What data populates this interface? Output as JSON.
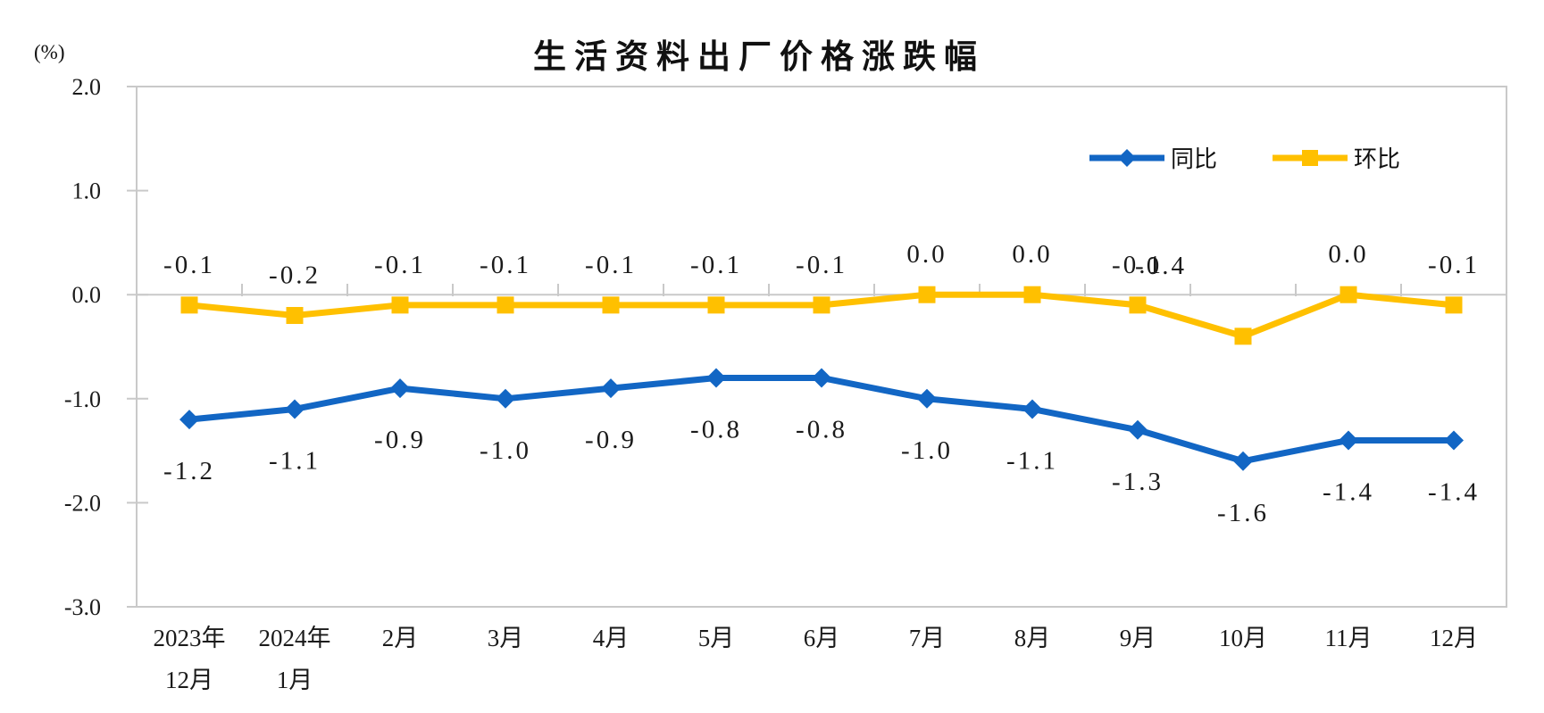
{
  "chart_data": {
    "type": "line",
    "title": "生活资料出厂价格涨跌幅",
    "unit": "(%)",
    "x_labels": [
      [
        "2023年",
        "12月"
      ],
      [
        "2024年",
        "1月"
      ],
      [
        "2月"
      ],
      [
        "3月"
      ],
      [
        "4月"
      ],
      [
        "5月"
      ],
      [
        "6月"
      ],
      [
        "7月"
      ],
      [
        "8月"
      ],
      [
        "9月"
      ],
      [
        "10月"
      ],
      [
        "11月"
      ],
      [
        "12月"
      ]
    ],
    "y_tick_labels": [
      "2.0",
      "1.0",
      "0.0",
      "-1.0",
      "-2.0",
      "-3.0"
    ],
    "y_tick_values": [
      2.0,
      1.0,
      0.0,
      -1.0,
      -2.0,
      -3.0
    ],
    "ylim": [
      -3.0,
      2.0
    ],
    "grid": "zero-line-only",
    "legend_position": "top-right-inside",
    "axis_color": "#C9C9C9",
    "label_color": "#1a1a1a",
    "series": [
      {
        "name": "同比",
        "marker": "diamond",
        "color": "#1266C4",
        "values": [
          -1.2,
          -1.1,
          -0.9,
          -1.0,
          -0.9,
          -0.8,
          -0.8,
          -1.0,
          -1.1,
          -1.3,
          -1.6,
          -1.4,
          -1.4
        ],
        "labels": [
          "-1.2",
          "-1.1",
          "-0.9",
          "-1.0",
          "-0.9",
          "-0.8",
          "-0.8",
          "-1.0",
          "-1.1",
          "-1.3",
          "-1.6",
          "-1.4",
          "-1.4"
        ]
      },
      {
        "name": "环比",
        "marker": "square",
        "color": "#FFC000",
        "values": [
          -0.1,
          -0.2,
          -0.1,
          -0.1,
          -0.1,
          -0.1,
          -0.1,
          0.0,
          0.0,
          -0.1,
          -0.4,
          0.0,
          -0.1
        ],
        "labels": [
          "-0.1",
          "-0.2",
          "-0.1",
          "-0.1",
          "-0.1",
          "-0.1",
          "-0.1",
          "0.0",
          "0.0",
          "-0.1",
          "-0.4",
          "0.0",
          "-0.1"
        ]
      }
    ]
  }
}
